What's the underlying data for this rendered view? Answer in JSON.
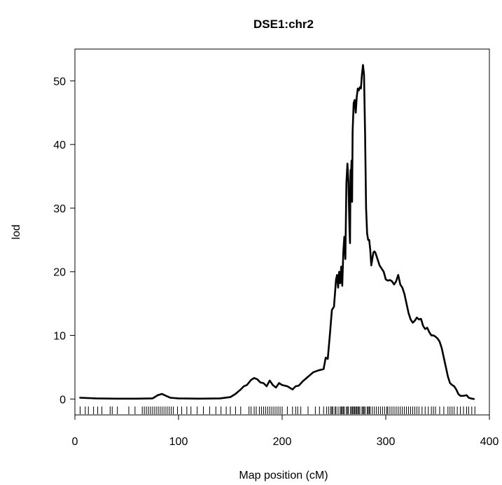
{
  "chart_data": {
    "type": "line",
    "title": "DSE1:chr2",
    "xlabel": "Map position (cM)",
    "ylabel": "lod",
    "xlim": [
      0,
      400
    ],
    "ylim": [
      -2.5,
      55
    ],
    "x_ticks": [
      0,
      100,
      200,
      300,
      400
    ],
    "y_ticks": [
      0,
      10,
      20,
      30,
      40,
      50
    ],
    "grid": false,
    "legend": "none",
    "series": [
      {
        "color": "#000000",
        "x": [
          5,
          20,
          40,
          60,
          75,
          80,
          84,
          88,
          92,
          100,
          120,
          140,
          150,
          155,
          160,
          163,
          166,
          170,
          173,
          176,
          179,
          182,
          185,
          188,
          191,
          194,
          197,
          200,
          205,
          210,
          213,
          216,
          220,
          225,
          230,
          235,
          240,
          242,
          244,
          246,
          248,
          250,
          252,
          253,
          254,
          255,
          256,
          257,
          258,
          259,
          260,
          261,
          262,
          263,
          264,
          265,
          265.5,
          266,
          266.5,
          267,
          267.5,
          268,
          269,
          270,
          271,
          272,
          273,
          274,
          275,
          276,
          277,
          278,
          279,
          280,
          281,
          282,
          283,
          284,
          285,
          286,
          287,
          288,
          289,
          290,
          292,
          294,
          296,
          298,
          300,
          302,
          304,
          306,
          308,
          310,
          312,
          314,
          316,
          318,
          320,
          322,
          324,
          326,
          328,
          330,
          332,
          334,
          336,
          338,
          340,
          342,
          344,
          346,
          348,
          350,
          352,
          354,
          356,
          358,
          360,
          362,
          364,
          366,
          368,
          370,
          372,
          375,
          378,
          380,
          382,
          385
        ],
        "y": [
          0.2,
          0.1,
          0.05,
          0.05,
          0.1,
          0.6,
          0.8,
          0.5,
          0.2,
          0.1,
          0.05,
          0.1,
          0.3,
          0.8,
          1.5,
          2.0,
          2.2,
          3.0,
          3.3,
          3.1,
          2.6,
          2.5,
          2.0,
          2.9,
          2.2,
          1.8,
          2.5,
          2.2,
          2.0,
          1.5,
          2.0,
          2.1,
          2.8,
          3.5,
          4.2,
          4.5,
          4.7,
          6.5,
          6.3,
          10.0,
          14.0,
          14.5,
          18.8,
          19.5,
          17.5,
          20.0,
          18.2,
          20.8,
          17.8,
          23.0,
          25.5,
          22.0,
          34.0,
          37.0,
          34.0,
          26.5,
          24.5,
          36.0,
          35.5,
          37.5,
          31.0,
          42.0,
          46.5,
          47.0,
          45.0,
          47.5,
          48.8,
          48.5,
          49.0,
          48.8,
          51.0,
          52.5,
          51.0,
          42.0,
          30.0,
          26.0,
          25.0,
          25.0,
          23.5,
          21.0,
          22.0,
          23.0,
          23.2,
          23.0,
          22.0,
          21.0,
          20.5,
          20.0,
          18.8,
          18.6,
          18.7,
          18.5,
          18.0,
          18.5,
          19.5,
          18.0,
          17.5,
          16.5,
          15.0,
          13.5,
          12.5,
          12.0,
          12.3,
          12.8,
          12.5,
          12.6,
          11.5,
          11.0,
          11.2,
          10.5,
          10.0,
          10.0,
          9.8,
          9.5,
          9.0,
          8.0,
          6.5,
          5.0,
          3.5,
          2.5,
          2.2,
          2.0,
          1.5,
          0.8,
          0.5,
          0.5,
          0.6,
          0.2,
          0.1,
          0.0
        ]
      }
    ],
    "markers": [
      5,
      10,
      13,
      18,
      22,
      26,
      34,
      36,
      41,
      52,
      58,
      65,
      67,
      69,
      71,
      73,
      75,
      77,
      79,
      81,
      83,
      85,
      87,
      89,
      91,
      93,
      95,
      99,
      103,
      108,
      112,
      118,
      124,
      130,
      136,
      141,
      146,
      150,
      155,
      160,
      168,
      170,
      173,
      175,
      178,
      180,
      182,
      184,
      186,
      188,
      190,
      192,
      194,
      196,
      198,
      200,
      205,
      210,
      213,
      215,
      218,
      225,
      232,
      236,
      240,
      243,
      245,
      247,
      248,
      249,
      251,
      252,
      254,
      256,
      257,
      258,
      259,
      260,
      262,
      263,
      264,
      266,
      267,
      268,
      269,
      270,
      271,
      272,
      273,
      274,
      275,
      277,
      278,
      279,
      280,
      282,
      283,
      284,
      285,
      287,
      289,
      291,
      293,
      295,
      297,
      299,
      301,
      302,
      304,
      306,
      308,
      310,
      312,
      314,
      316,
      318,
      320,
      322,
      324,
      326,
      328,
      330,
      332,
      335,
      338,
      341,
      344,
      346,
      348,
      352,
      356,
      360,
      362,
      364,
      366,
      369,
      372,
      375,
      378,
      380,
      383,
      386
    ]
  }
}
